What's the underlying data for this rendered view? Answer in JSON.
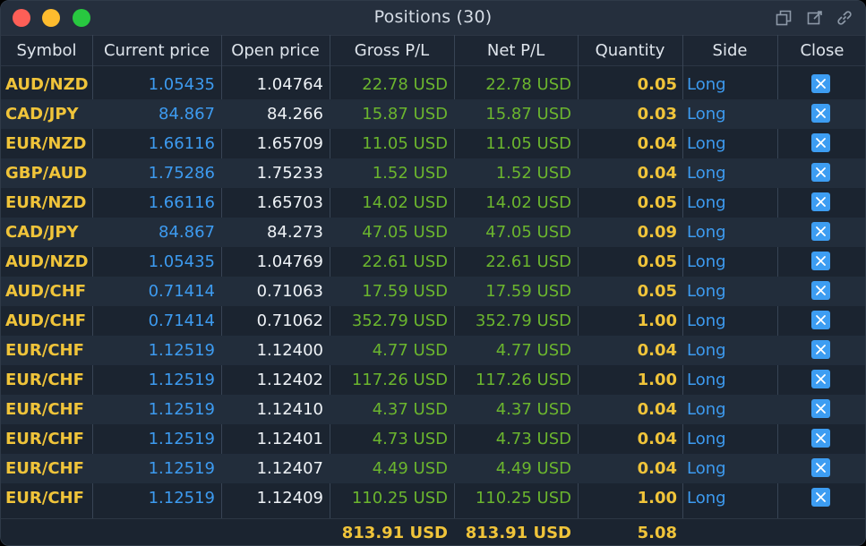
{
  "window": {
    "title": "Positions (30)"
  },
  "columns": [
    "Symbol",
    "Current price",
    "Open price",
    "Gross P/L",
    "Net P/L",
    "Quantity",
    "Side",
    "Close"
  ],
  "positions": [
    {
      "symbol": "AUD/NZD",
      "current": "1.05435",
      "open": "1.04764",
      "gross": "22.78 USD",
      "net": "22.78 USD",
      "qty": "0.05",
      "side": "Long"
    },
    {
      "symbol": "CAD/JPY",
      "current": "84.867",
      "open": "84.266",
      "gross": "15.87 USD",
      "net": "15.87 USD",
      "qty": "0.03",
      "side": "Long"
    },
    {
      "symbol": "EUR/NZD",
      "current": "1.66116",
      "open": "1.65709",
      "gross": "11.05 USD",
      "net": "11.05 USD",
      "qty": "0.04",
      "side": "Long"
    },
    {
      "symbol": "GBP/AUD",
      "current": "1.75286",
      "open": "1.75233",
      "gross": "1.52 USD",
      "net": "1.52 USD",
      "qty": "0.04",
      "side": "Long"
    },
    {
      "symbol": "EUR/NZD",
      "current": "1.66116",
      "open": "1.65703",
      "gross": "14.02 USD",
      "net": "14.02 USD",
      "qty": "0.05",
      "side": "Long"
    },
    {
      "symbol": "CAD/JPY",
      "current": "84.867",
      "open": "84.273",
      "gross": "47.05 USD",
      "net": "47.05 USD",
      "qty": "0.09",
      "side": "Long"
    },
    {
      "symbol": "AUD/NZD",
      "current": "1.05435",
      "open": "1.04769",
      "gross": "22.61 USD",
      "net": "22.61 USD",
      "qty": "0.05",
      "side": "Long"
    },
    {
      "symbol": "AUD/CHF",
      "current": "0.71414",
      "open": "0.71063",
      "gross": "17.59 USD",
      "net": "17.59 USD",
      "qty": "0.05",
      "side": "Long"
    },
    {
      "symbol": "AUD/CHF",
      "current": "0.71414",
      "open": "0.71062",
      "gross": "352.79 USD",
      "net": "352.79 USD",
      "qty": "1.00",
      "side": "Long"
    },
    {
      "symbol": "EUR/CHF",
      "current": "1.12519",
      "open": "1.12400",
      "gross": "4.77 USD",
      "net": "4.77 USD",
      "qty": "0.04",
      "side": "Long"
    },
    {
      "symbol": "EUR/CHF",
      "current": "1.12519",
      "open": "1.12402",
      "gross": "117.26 USD",
      "net": "117.26 USD",
      "qty": "1.00",
      "side": "Long"
    },
    {
      "symbol": "EUR/CHF",
      "current": "1.12519",
      "open": "1.12410",
      "gross": "4.37 USD",
      "net": "4.37 USD",
      "qty": "0.04",
      "side": "Long"
    },
    {
      "symbol": "EUR/CHF",
      "current": "1.12519",
      "open": "1.12401",
      "gross": "4.73 USD",
      "net": "4.73 USD",
      "qty": "0.04",
      "side": "Long"
    },
    {
      "symbol": "EUR/CHF",
      "current": "1.12519",
      "open": "1.12407",
      "gross": "4.49 USD",
      "net": "4.49 USD",
      "qty": "0.04",
      "side": "Long"
    },
    {
      "symbol": "EUR/CHF",
      "current": "1.12519",
      "open": "1.12409",
      "gross": "110.25 USD",
      "net": "110.25 USD",
      "qty": "1.00",
      "side": "Long"
    }
  ],
  "totals": {
    "gross": "813.91 USD",
    "net": "813.91 USD",
    "qty": "5.08"
  },
  "icons": {
    "titlebar": [
      "detach-window-icon",
      "edit-window-icon",
      "link-icon"
    ],
    "row_close": "close-x-icon"
  },
  "colors": {
    "symbol": "#f0c43a",
    "current_price": "#3d9bf0",
    "open_price": "#eef2f6",
    "pl_positive": "#6bb52e",
    "quantity": "#f0c43a",
    "side": "#3d9bf0",
    "close_button": "#3d9df2",
    "background": "#1b2430"
  }
}
